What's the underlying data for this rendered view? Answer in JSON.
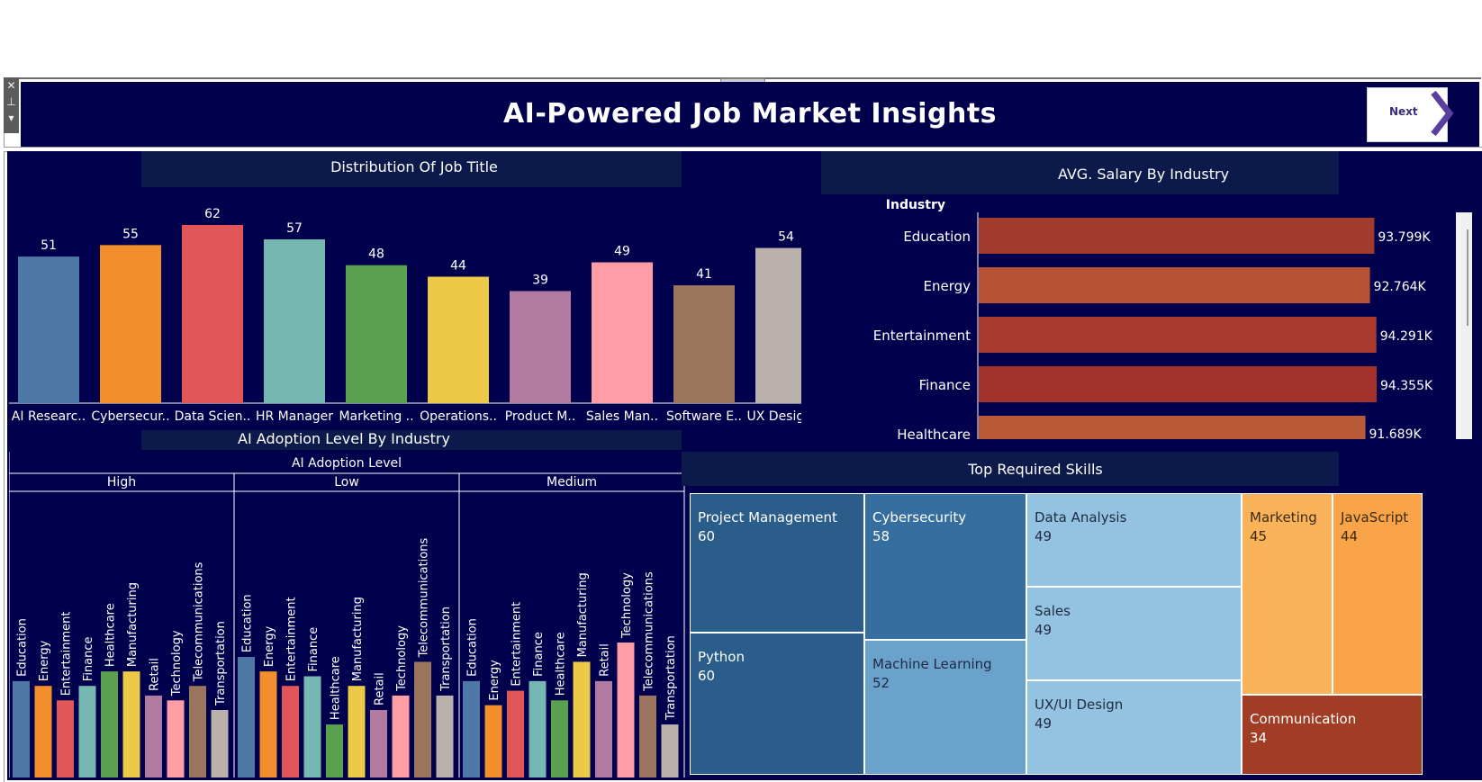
{
  "header": {
    "title": "AI-Powered Job Market Insights",
    "next_label": "Next"
  },
  "job_title_panel": {
    "title": "Distribution Of Job Title"
  },
  "salary_panel": {
    "title": "AVG. Salary By Industry",
    "axis_header": "Industry"
  },
  "adoption_panel": {
    "title": "AI Adoption Level By Industry",
    "group_header": "AI Adoption Level"
  },
  "skills_panel": {
    "title": "Top Required Skills"
  },
  "colors": {
    "background": "#00004d",
    "job_bars": [
      "#4e79a7",
      "#f28e2b",
      "#e15759",
      "#76b7b2",
      "#59a14f",
      "#edc948",
      "#b07aa1",
      "#ff9da7",
      "#9c755f",
      "#bab0ac"
    ],
    "salary_bars": [
      "#a33a2e",
      "#b75236",
      "#a8392f",
      "#a3322c",
      "#b85a37"
    ]
  },
  "chart_data": [
    {
      "type": "bar",
      "title": "Distribution Of Job Title",
      "categories": [
        "AI Researc..",
        "Cybersecur..",
        "Data Scien..",
        "HR Manager",
        "Marketing ..",
        "Operations..",
        "Product M..",
        "Sales Man..",
        "Software E..",
        "UX Designer"
      ],
      "values": [
        51,
        55,
        62,
        57,
        48,
        44,
        39,
        49,
        41,
        54
      ],
      "ylim": [
        0,
        62
      ]
    },
    {
      "type": "bar",
      "orientation": "horizontal",
      "title": "AVG. Salary By Industry",
      "ylabel": "Industry",
      "categories": [
        "Education",
        "Energy",
        "Entertainment",
        "Finance",
        "Healthcare"
      ],
      "values": [
        93799,
        92764,
        94291,
        94355,
        91689
      ],
      "labels": [
        "93.799K",
        "92.764K",
        "94.291K",
        "94.355K",
        "91.689K"
      ],
      "xlim": [
        0,
        94355
      ]
    },
    {
      "type": "bar",
      "title": "AI Adoption Level By Industry",
      "group_label": "AI Adoption Level",
      "groups": [
        "High",
        "Low",
        "Medium"
      ],
      "categories": [
        "Education",
        "Energy",
        "Entertainment",
        "Finance",
        "Healthcare",
        "Manufacturing",
        "Retail",
        "Technology",
        "Telecommunications",
        "Transportation"
      ],
      "series": [
        {
          "group": "High",
          "values": [
            20,
            19,
            16,
            19,
            22,
            22,
            17,
            16,
            19,
            14
          ]
        },
        {
          "group": "Low",
          "values": [
            25,
            22,
            19,
            21,
            11,
            19,
            14,
            17,
            24,
            17
          ]
        },
        {
          "group": "Medium",
          "values": [
            20,
            15,
            18,
            20,
            16,
            24,
            20,
            28,
            17,
            11
          ]
        }
      ],
      "ylim": [
        0,
        28
      ]
    },
    {
      "type": "treemap",
      "title": "Top Required Skills",
      "categories": [
        "Project Management",
        "Python",
        "Cybersecurity",
        "Machine Learning",
        "Data Analysis",
        "Sales",
        "UX/UI Design",
        "Marketing",
        "JavaScript",
        "Communication"
      ],
      "values": [
        60,
        60,
        58,
        52,
        49,
        49,
        49,
        45,
        44,
        34
      ]
    }
  ],
  "skills": [
    {
      "name": "Project Management",
      "value": "60",
      "color": "#2b5d8a",
      "text": "#ffffff"
    },
    {
      "name": "Python",
      "value": "60",
      "color": "#2b5d8a",
      "text": "#ffffff"
    },
    {
      "name": "Cybersecurity",
      "value": "58",
      "color": "#366e9f",
      "text": "#ffffff"
    },
    {
      "name": "Machine Learning",
      "value": "52",
      "color": "#6aa2cc",
      "text": "#1f2a44"
    },
    {
      "name": "Data Analysis",
      "value": "49",
      "color": "#93c3e0",
      "text": "#1f2a44"
    },
    {
      "name": "Sales",
      "value": "49",
      "color": "#93c3e0",
      "text": "#1f2a44"
    },
    {
      "name": "UX/UI Design",
      "value": "49",
      "color": "#93c3e0",
      "text": "#1f2a44"
    },
    {
      "name": "Marketing",
      "value": "45",
      "color": "#fbb35a",
      "text": "#3a2a10"
    },
    {
      "name": "JavaScript",
      "value": "44",
      "color": "#f9a448",
      "text": "#3a2a10"
    },
    {
      "name": "Communication",
      "value": "34",
      "color": "#a23d25",
      "text": "#ffffff"
    }
  ]
}
